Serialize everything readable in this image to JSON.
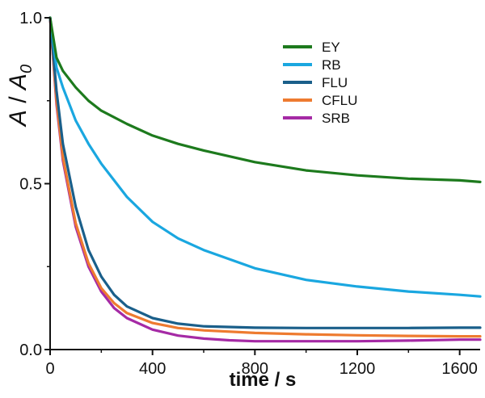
{
  "chart_data": {
    "type": "line",
    "title": "",
    "xlabel": "time / s",
    "ylabel_parts": {
      "a": "A",
      "slash": " / ",
      "b": "A",
      "sub": "0"
    },
    "xlim": [
      0,
      1680
    ],
    "ylim": [
      0,
      1.0
    ],
    "x_ticks": [
      0,
      400,
      800,
      1200,
      1600
    ],
    "y_ticks": [
      0.0,
      0.5,
      1.0
    ],
    "x_tick_labels": [
      "0",
      "400",
      "800",
      "1200",
      "1600"
    ],
    "y_tick_labels": [
      "0.0",
      "0.5",
      "1.0"
    ],
    "grid": false,
    "legend_position": "top-right",
    "series": [
      {
        "name": "EY",
        "color": "#1d7a1d",
        "x": [
          0,
          25,
          50,
          100,
          150,
          200,
          300,
          400,
          500,
          600,
          800,
          1000,
          1200,
          1400,
          1600,
          1680
        ],
        "y": [
          1.0,
          0.88,
          0.84,
          0.79,
          0.75,
          0.72,
          0.68,
          0.645,
          0.62,
          0.6,
          0.565,
          0.54,
          0.525,
          0.515,
          0.51,
          0.505
        ]
      },
      {
        "name": "RB",
        "color": "#1aa7e0",
        "x": [
          0,
          25,
          50,
          100,
          150,
          200,
          300,
          400,
          500,
          600,
          800,
          1000,
          1200,
          1400,
          1600,
          1680
        ],
        "y": [
          1.0,
          0.85,
          0.79,
          0.69,
          0.62,
          0.56,
          0.46,
          0.385,
          0.335,
          0.3,
          0.245,
          0.21,
          0.19,
          0.175,
          0.165,
          0.16
        ]
      },
      {
        "name": "FLU",
        "color": "#1a5f8a",
        "x": [
          0,
          25,
          50,
          100,
          150,
          200,
          250,
          300,
          400,
          500,
          600,
          800,
          1000,
          1200,
          1400,
          1600,
          1680
        ],
        "y": [
          1.0,
          0.78,
          0.62,
          0.43,
          0.3,
          0.22,
          0.165,
          0.13,
          0.095,
          0.078,
          0.07,
          0.066,
          0.065,
          0.065,
          0.065,
          0.066,
          0.066
        ]
      },
      {
        "name": "CFLU",
        "color": "#ee7b30",
        "x": [
          0,
          25,
          50,
          100,
          150,
          200,
          250,
          300,
          400,
          500,
          600,
          800,
          1000,
          1200,
          1400,
          1600,
          1680
        ],
        "y": [
          1.0,
          0.75,
          0.58,
          0.38,
          0.26,
          0.185,
          0.14,
          0.11,
          0.08,
          0.065,
          0.058,
          0.05,
          0.046,
          0.043,
          0.041,
          0.04,
          0.04
        ]
      },
      {
        "name": "SRB",
        "color": "#a52aa5",
        "x": [
          0,
          25,
          50,
          100,
          150,
          200,
          250,
          300,
          400,
          500,
          600,
          700,
          800,
          1000,
          1200,
          1400,
          1600,
          1680
        ],
        "y": [
          1.0,
          0.74,
          0.57,
          0.37,
          0.25,
          0.175,
          0.125,
          0.095,
          0.06,
          0.042,
          0.033,
          0.028,
          0.025,
          0.025,
          0.025,
          0.027,
          0.03,
          0.03
        ]
      }
    ]
  }
}
